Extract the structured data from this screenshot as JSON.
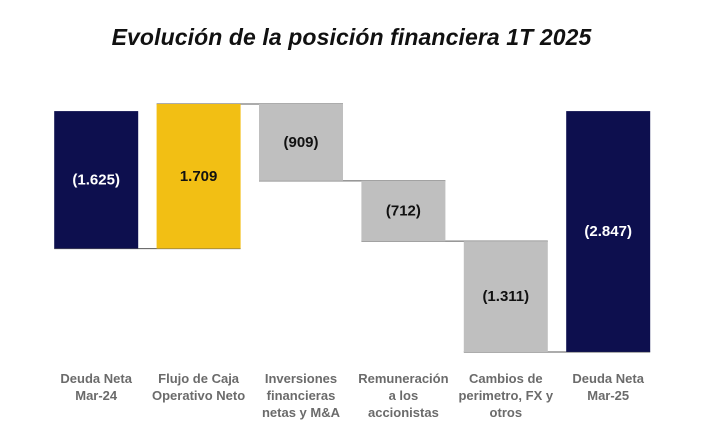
{
  "chart_data": {
    "type": "waterfall",
    "title": "Evolución de la posición financiera 1T 2025",
    "xlabel": "",
    "ylabel": "",
    "grid": false,
    "legend": "none",
    "categories": [
      [
        "Deuda Neta",
        "Mar-24"
      ],
      [
        "Flujo de Caja",
        "Operativo Neto"
      ],
      [
        "Inversiones",
        "financieras",
        "netas y M&A"
      ],
      [
        "Remuneración",
        "a los",
        "accionistas"
      ],
      [
        "Cambios de",
        "perimetro, FX y",
        "otros"
      ],
      [
        "Deuda Neta",
        "Mar-25"
      ]
    ],
    "bars": [
      {
        "kind": "total",
        "value": -1625,
        "label": "(1.625)"
      },
      {
        "kind": "delta",
        "value": 1709,
        "label": "1.709"
      },
      {
        "kind": "delta",
        "value": -909,
        "label": "(909)"
      },
      {
        "kind": "delta",
        "value": -712,
        "label": "(712)"
      },
      {
        "kind": "delta",
        "value": -1311,
        "label": "(1.311)"
      },
      {
        "kind": "total",
        "value": -2847,
        "label": "(2.847)"
      }
    ],
    "colors": {
      "total": "#0d0f4e",
      "increase": "#f2bf14",
      "decrease": "#bfbfbf",
      "connector": "#5a5a5a",
      "label_on_dark": "#ffffff",
      "label_on_light": "#111111",
      "category_text": "#6b6b6b"
    }
  }
}
